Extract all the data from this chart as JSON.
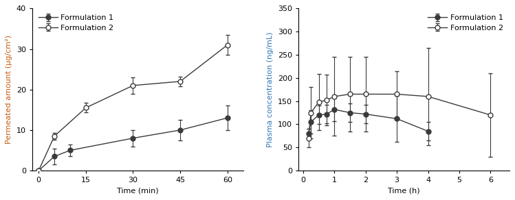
{
  "left": {
    "f1_x": [
      0,
      5,
      10,
      30,
      45,
      60
    ],
    "f1_y": [
      0,
      3.5,
      5.0,
      8.0,
      10.0,
      13.0
    ],
    "f1_yerr": [
      0,
      2.0,
      1.5,
      2.0,
      2.5,
      3.0
    ],
    "f2_x": [
      0,
      5,
      15,
      30,
      45,
      60
    ],
    "f2_y": [
      0,
      8.5,
      15.5,
      21.0,
      22.0,
      31.0
    ],
    "f2_yerr": [
      0,
      0.8,
      1.2,
      2.0,
      1.2,
      2.5
    ],
    "xlabel": "Time (min)",
    "ylabel": "Permeated amount (μg/cm²)",
    "ylim": [
      0,
      40
    ],
    "yticks": [
      0,
      10,
      20,
      30,
      40
    ],
    "xticks": [
      0,
      15,
      30,
      45,
      60
    ]
  },
  "right": {
    "f1_x": [
      0.17,
      0.25,
      0.5,
      0.75,
      1.0,
      1.5,
      2.0,
      3.0,
      4.0
    ],
    "f1_y": [
      80,
      105,
      120,
      122,
      132,
      125,
      122,
      112,
      85
    ],
    "f1_yerr": [
      10,
      25,
      20,
      20,
      25,
      20,
      20,
      50,
      20
    ],
    "f2_x": [
      0.17,
      0.25,
      0.5,
      0.75,
      1.0,
      1.5,
      2.0,
      3.0,
      4.0,
      6.0
    ],
    "f2_y": [
      70,
      125,
      148,
      152,
      160,
      165,
      165,
      165,
      160,
      120
    ],
    "f2_yerr": [
      20,
      55,
      60,
      55,
      85,
      80,
      80,
      50,
      105,
      90
    ],
    "xlabel": "Time (h)",
    "ylabel": "Plasma concentration (ng/mL)",
    "ylim": [
      0,
      350
    ],
    "yticks": [
      0,
      50,
      100,
      150,
      200,
      250,
      300,
      350
    ],
    "xticks": [
      0,
      1,
      2,
      3,
      4,
      5,
      6
    ]
  },
  "legend_f1": "Formulation 1",
  "legend_f2": "Formulation 2",
  "line_color": "#3a3a3a",
  "text_color": "#000000",
  "ylabel_color_left": "#c55a11",
  "ylabel_color_right": "#2e75b6",
  "fontsize": 8,
  "marker_size": 5,
  "capsize": 2.5,
  "elinewidth": 0.8,
  "linewidth": 1.0
}
